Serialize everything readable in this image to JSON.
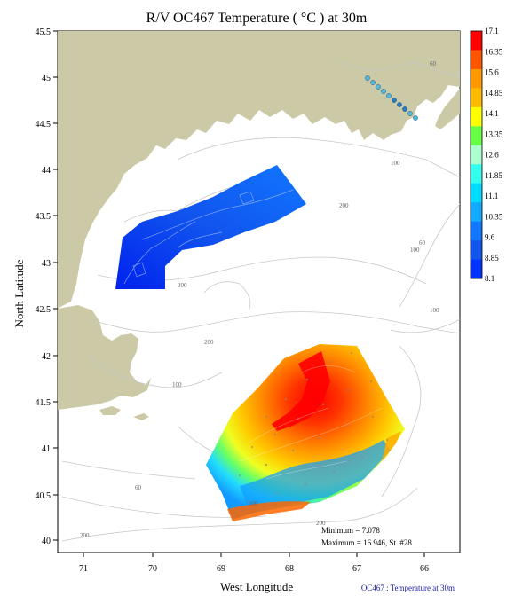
{
  "title": "R/V OC467 Temperature ( °C ) at 30m",
  "xlabel": "West Longitude",
  "ylabel": "North Latitude",
  "footer": "OC467 : Temperature at 30m",
  "stats": {
    "minimum": "Minimum = 7.078",
    "maximum": "Maximum = 16.946, St. #28"
  },
  "chart_data": {
    "type": "heatmap",
    "title": "R/V OC467 Temperature ( °C ) at 30m",
    "xlabel": "West Longitude",
    "ylabel": "North Latitude",
    "xlim": [
      71.5,
      65.5
    ],
    "ylim": [
      39.9,
      45.5
    ],
    "x_ticks": [
      "71",
      "70",
      "69",
      "68",
      "67",
      "66"
    ],
    "y_ticks": [
      "45.5",
      "45",
      "44.5",
      "44",
      "43.5",
      "43",
      "42.5",
      "42",
      "41.5",
      "41",
      "40.5",
      "40"
    ],
    "colorbar": {
      "labels": [
        "17.1",
        "16.35",
        "15.6",
        "14.85",
        "14.1",
        "13.35",
        "12.6",
        "11.85",
        "11.1",
        "10.35",
        "9.6",
        "8.85",
        "8.1"
      ],
      "colors": [
        "#ff0000",
        "#ff5500",
        "#ff9900",
        "#ffbb00",
        "#ffff00",
        "#66ff44",
        "#aaffcc",
        "#33ffee",
        "#00ddff",
        "#11aaff",
        "#1177ff",
        "#1155ee",
        "#0033ff"
      ]
    },
    "contour_labels": [
      "60",
      "100",
      "200",
      "200",
      "100",
      "200",
      "100",
      "100",
      "60",
      "100",
      "200",
      "200",
      "60"
    ],
    "minimum": 7.078,
    "maximum": 16.946,
    "max_station": 28
  },
  "colors": {
    "land": "#cccaa6",
    "contour": "#c8c8c8",
    "station_blue": "#2a78b8",
    "station_cyan": "#56b8d8"
  }
}
